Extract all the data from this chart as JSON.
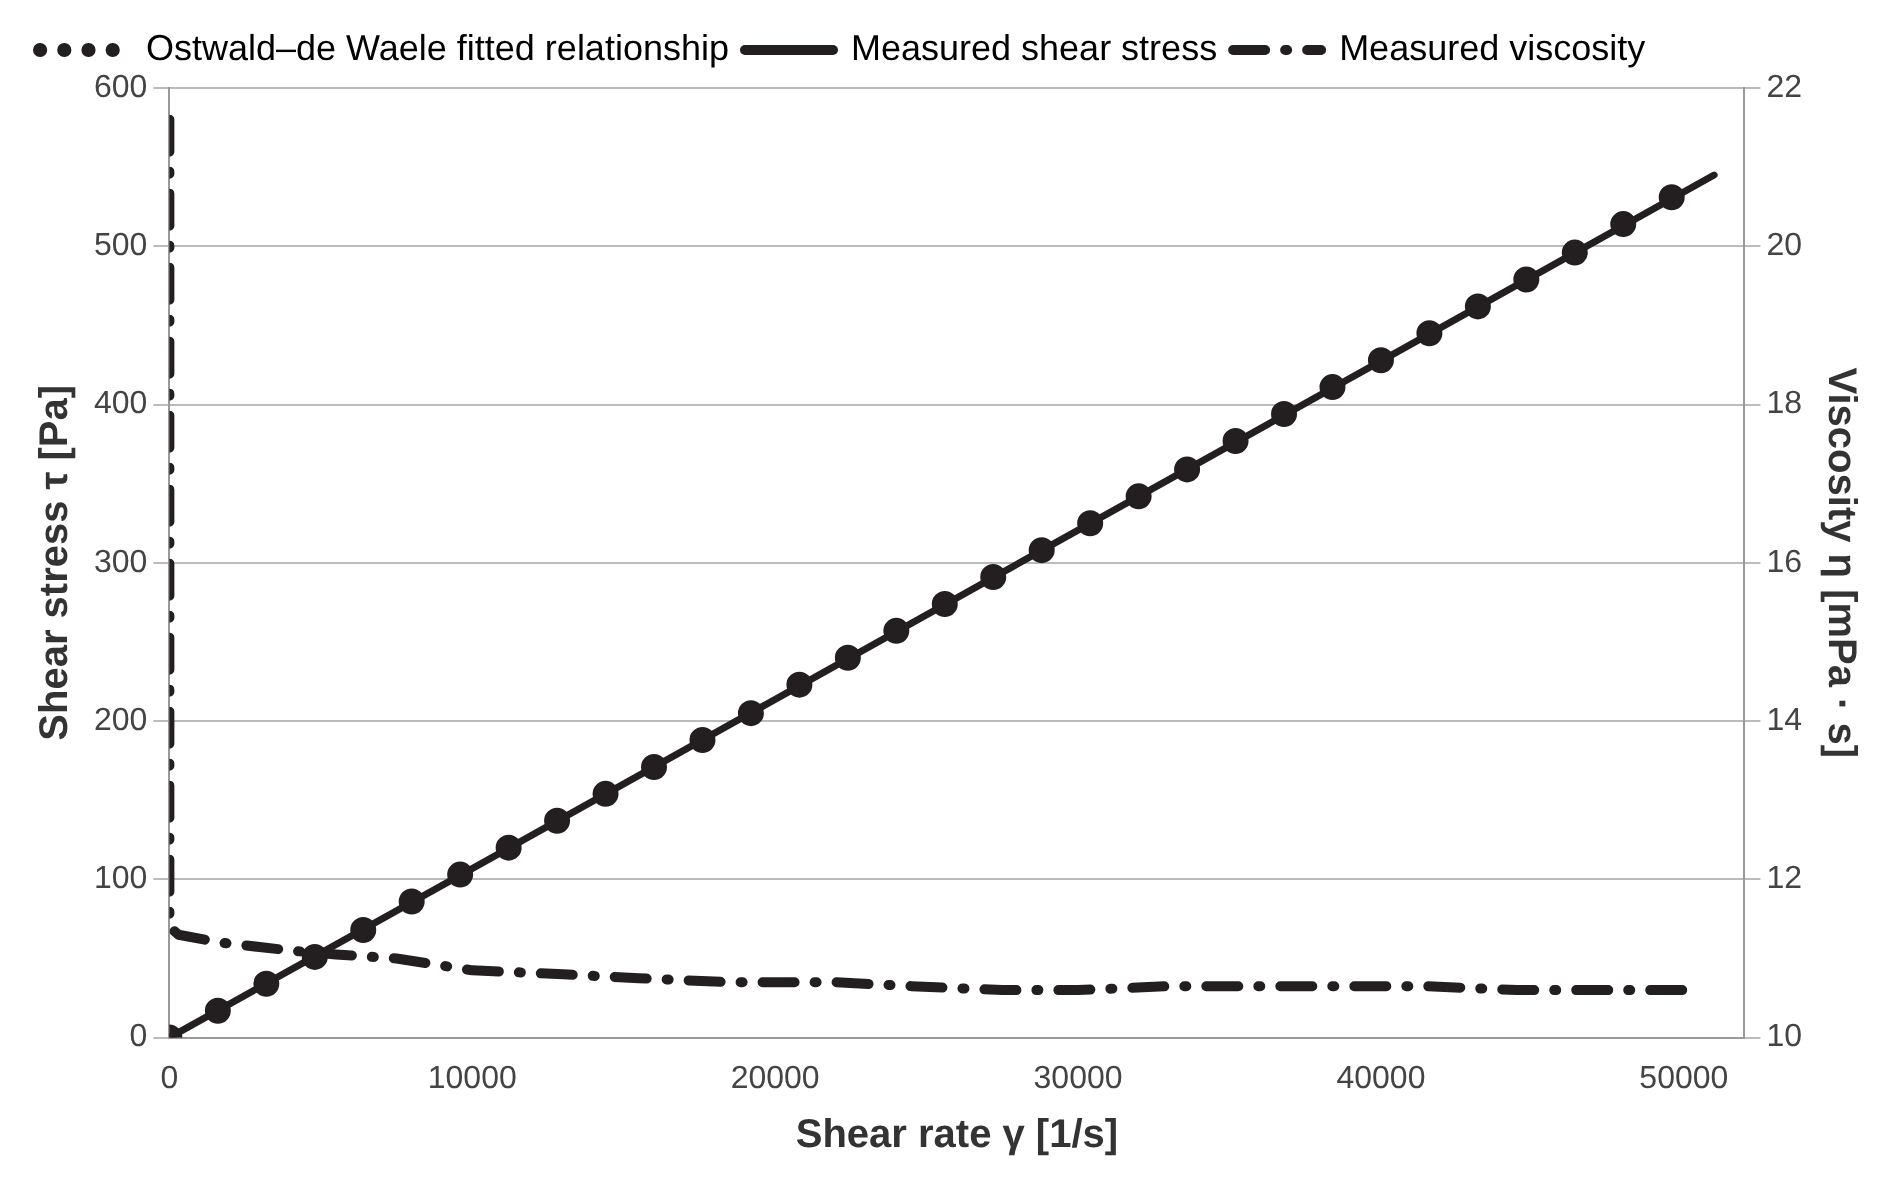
{
  "chart_data": {
    "type": "line",
    "xlabel": "Shear rate γ [1/s]",
    "ylabel": "Shear stress τ [Pa]",
    "y2label": "Viscosity η [mPa · s]",
    "xlim": [
      0,
      52000
    ],
    "xticks": [
      0,
      10000,
      20000,
      30000,
      40000,
      50000
    ],
    "ylim": [
      0,
      600
    ],
    "yticks": [
      0,
      100,
      200,
      300,
      400,
      500,
      600
    ],
    "y2lim": [
      10,
      22
    ],
    "y2ticks": [
      10,
      12,
      14,
      16,
      18,
      20,
      22
    ],
    "grid": "y",
    "legend": "top left",
    "series": [
      {
        "name": "Ostwald–de Waele fitted relationship",
        "type": "scatter",
        "marker": "circle",
        "color": "#231f20",
        "x": [
          0,
          1600,
          3200,
          4800,
          6400,
          8000,
          9600,
          11200,
          12800,
          14400,
          16000,
          17600,
          19200,
          20800,
          22400,
          24000,
          25600,
          27200,
          28800,
          30400,
          32000,
          33600,
          35200,
          36800,
          38400,
          40000,
          41600,
          43200,
          44800,
          46400,
          48000,
          49600
        ],
        "values": [
          0,
          17,
          34,
          51,
          68,
          86,
          103,
          120,
          137,
          154,
          171,
          188,
          205,
          223,
          240,
          257,
          274,
          291,
          308,
          325,
          342,
          359,
          377,
          394,
          411,
          428,
          445,
          462,
          479,
          496,
          514,
          531
        ]
      },
      {
        "name": "Measured shear stress",
        "type": "line",
        "line_style": "solid",
        "marker": "none",
        "color": "#231f20",
        "x": [
          0,
          51000
        ],
        "values": [
          0,
          545
        ]
      },
      {
        "name": "Measured viscosity",
        "type": "line",
        "line_style": "dashed",
        "marker": "none",
        "axis": "y2",
        "color": "#231f20",
        "x": [
          0,
          0,
          300,
          1700,
          4000,
          5500,
          7500,
          10000,
          13000,
          15500,
          18500,
          22000,
          24500,
          27500,
          30000,
          33000,
          36000,
          39000,
          41500,
          44500,
          47000,
          50000
        ],
        "values": [
          21.6,
          11.4,
          11.3,
          11.2,
          11.1,
          11.05,
          11.0,
          10.85,
          10.8,
          10.75,
          10.7,
          10.7,
          10.65,
          10.6,
          10.6,
          10.65,
          10.65,
          10.65,
          10.65,
          10.6,
          10.6,
          10.6
        ]
      }
    ]
  }
}
